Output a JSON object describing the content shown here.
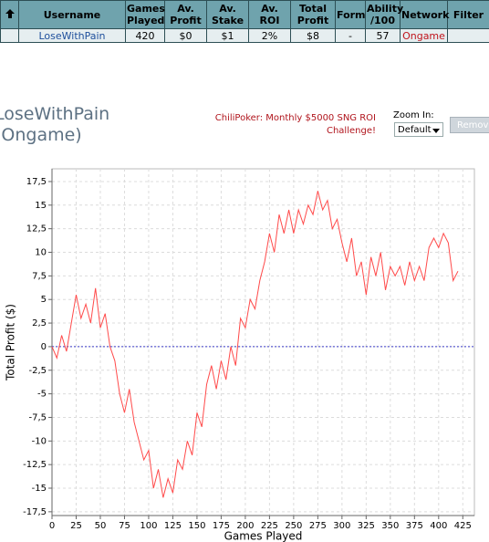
{
  "table": {
    "headers": [
      "Username",
      "Games Played",
      "Av. Profit",
      "Av. Stake",
      "Av. ROI",
      "Total Profit",
      "Form",
      "Ability /100",
      "Network",
      "Filter"
    ],
    "rows": [
      [
        "LoseWithPain",
        "420",
        "$0",
        "$1",
        "2%",
        "$8",
        "-",
        "57",
        "Ongame",
        ""
      ]
    ]
  },
  "header": {
    "title": "LoseWithPain (Ongame)",
    "note": "ChiliPoker: Monthly $5000 SNG ROI Challenge!"
  },
  "controls": {
    "zoom_label": "Zoom In:",
    "zoom_value": "Default",
    "button": "Remove"
  },
  "chart_data": {
    "type": "line",
    "color": "#ff4a4a",
    "x_label": "Games Played",
    "y_label": "Total Profit ($)",
    "x": [
      0,
      5,
      10,
      15,
      20,
      25,
      30,
      35,
      40,
      45,
      50,
      55,
      60,
      65,
      70,
      75,
      80,
      85,
      90,
      95,
      100,
      105,
      110,
      115,
      120,
      125,
      130,
      135,
      140,
      145,
      150,
      155,
      160,
      165,
      170,
      175,
      180,
      185,
      190,
      195,
      200,
      205,
      210,
      215,
      220,
      225,
      230,
      235,
      240,
      245,
      250,
      255,
      260,
      265,
      270,
      275,
      280,
      285,
      290,
      295,
      300,
      305,
      310,
      315,
      320,
      325,
      330,
      335,
      340,
      345,
      350,
      355,
      360,
      365,
      370,
      375,
      380,
      385,
      390,
      395,
      400,
      405,
      410,
      415,
      420
    ],
    "values": [
      0,
      -1.2,
      1.2,
      -0.5,
      2.5,
      5.5,
      3,
      4.5,
      2.5,
      6.2,
      2,
      3.5,
      0,
      -1.5,
      -5,
      -7,
      -4.5,
      -8,
      -10,
      -12,
      -11,
      -15,
      -13,
      -16,
      -14,
      -15.5,
      -12,
      -13,
      -10,
      -11.5,
      -7,
      -8.5,
      -4,
      -2,
      -4.5,
      -1.5,
      -3.5,
      0,
      -2,
      3,
      2,
      5,
      4,
      7,
      9,
      12,
      10,
      14,
      12,
      14.5,
      12,
      14.5,
      13,
      15,
      14,
      16.5,
      14.5,
      15.5,
      12.5,
      13.5,
      11,
      9,
      11.5,
      7.5,
      9,
      5.5,
      9.5,
      7.5,
      10,
      6,
      8.5,
      7.5,
      8.5,
      6.5,
      9,
      7,
      8.5,
      7,
      10.5,
      11.5,
      10.5,
      12,
      11,
      7,
      8
    ],
    "reference_line": 0,
    "xlim": [
      0,
      437
    ],
    "ylim": [
      -17.9,
      18.85
    ],
    "xticks": [
      0,
      25,
      50,
      75,
      100,
      125,
      150,
      175,
      200,
      225,
      250,
      275,
      300,
      325,
      350,
      375,
      400,
      425
    ],
    "yticks": [
      {
        "value": 17.5,
        "label": "17,5"
      },
      15,
      {
        "value": 12.5,
        "label": "12,5"
      },
      10,
      {
        "value": 7.5,
        "label": "7,5"
      },
      5,
      {
        "value": 2.5,
        "label": "2,5"
      },
      0,
      {
        "value": -2.5,
        "label": "-2,5"
      },
      -5,
      {
        "value": -7.5,
        "label": "-7,5"
      },
      -10,
      {
        "value": -12.5,
        "label": "-12,5"
      },
      -15,
      {
        "value": -17.5,
        "label": "-17,5"
      }
    ],
    "grid": true
  }
}
